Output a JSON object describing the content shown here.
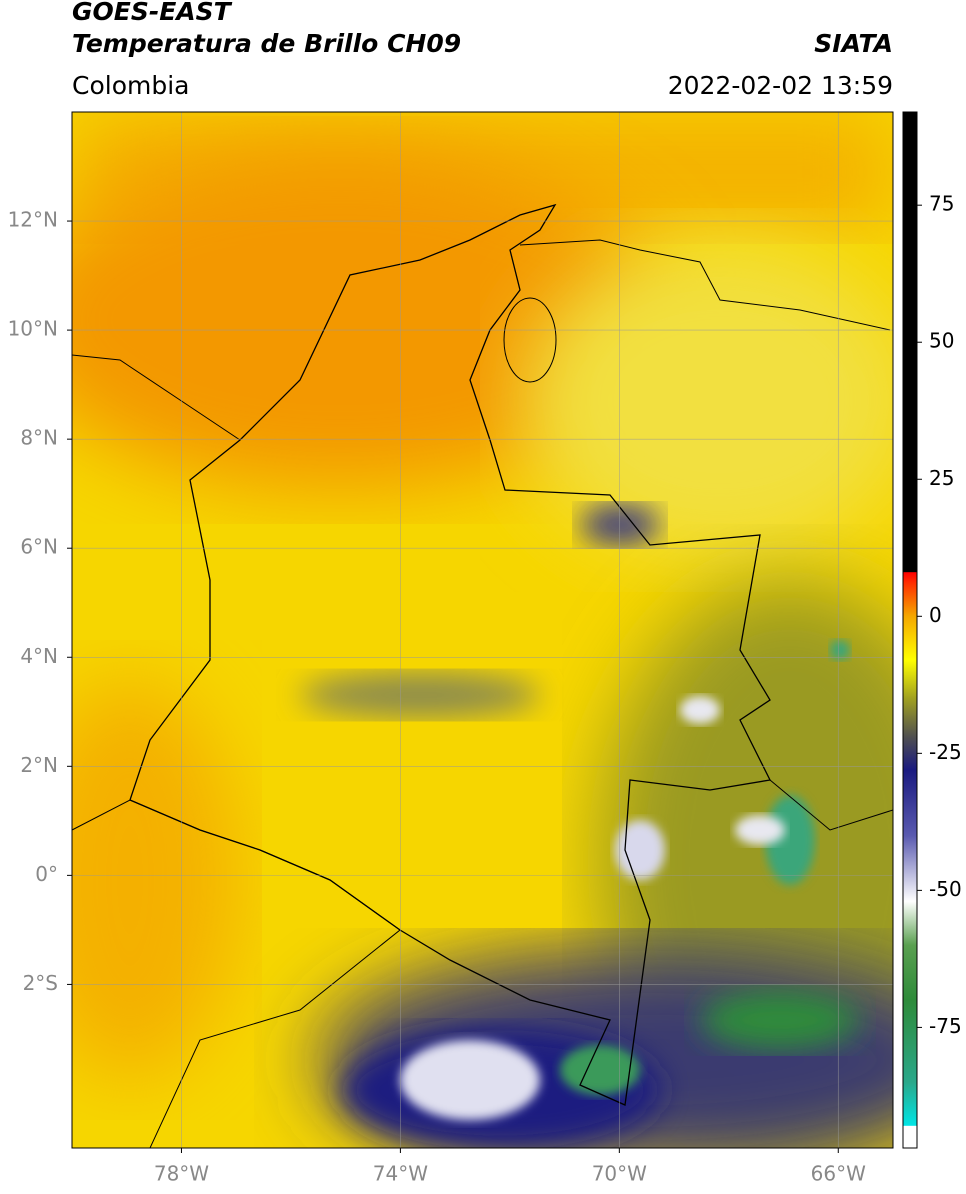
{
  "header": {
    "title": "GOES-EAST",
    "subtitle": "Temperatura de Brillo CH09",
    "source": "SIATA",
    "region": "Colombia",
    "datetime": "2022-02-02 13:59"
  },
  "map": {
    "xlim": [
      -80,
      -65
    ],
    "ylim": [
      -5,
      14
    ],
    "xticks": [
      {
        "value": -78,
        "label": "78°W"
      },
      {
        "value": -74,
        "label": "74°W"
      },
      {
        "value": -70,
        "label": "70°W"
      },
      {
        "value": -66,
        "label": "66°W"
      }
    ],
    "yticks": [
      {
        "value": 12,
        "label": "12°N"
      },
      {
        "value": 10,
        "label": "10°N"
      },
      {
        "value": 8,
        "label": "8°N"
      },
      {
        "value": 6,
        "label": "6°N"
      },
      {
        "value": 4,
        "label": "4°N"
      },
      {
        "value": 2,
        "label": "2°N"
      },
      {
        "value": 0,
        "label": "0°"
      },
      {
        "value": -2,
        "label": "2°S"
      }
    ],
    "grid": true
  },
  "colorbar": {
    "lim": [
      -97,
      92
    ],
    "ticks": [
      75,
      50,
      25,
      0,
      -25,
      -50,
      -75
    ],
    "stops": [
      [
        -97,
        "#ffffff"
      ],
      [
        -93,
        "#ffffff"
      ],
      [
        -92.9,
        "#00e5e5"
      ],
      [
        -85,
        "#2aa88a"
      ],
      [
        -70,
        "#2e8b3a"
      ],
      [
        -60,
        "#5aa050"
      ],
      [
        -52,
        "#ffffff"
      ],
      [
        -40,
        "#5a5ab0"
      ],
      [
        -28,
        "#1a1a80"
      ],
      [
        -22,
        "#505050"
      ],
      [
        -15,
        "#a0a020"
      ],
      [
        -8,
        "#ffff00"
      ],
      [
        0,
        "#f5a800"
      ],
      [
        6,
        "#ff3000"
      ],
      [
        8,
        "#ff0000"
      ],
      [
        8.1,
        "#000000"
      ],
      [
        92,
        "#000000"
      ]
    ]
  }
}
